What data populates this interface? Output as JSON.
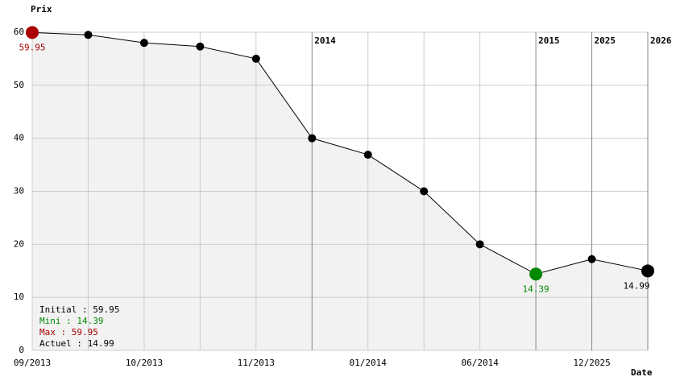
{
  "chart_data": {
    "type": "line",
    "y_label": "Prix",
    "x_label": "Date",
    "categories": [
      "09/2013",
      null,
      "10/2013",
      null,
      "11/2013",
      null,
      "01/2014",
      null,
      "06/2014",
      null,
      "12/2025",
      null
    ],
    "year_labels": [
      null,
      null,
      null,
      null,
      null,
      "2014",
      null,
      null,
      null,
      "2015",
      "2025",
      "2026"
    ],
    "series": [
      {
        "name": "Prix",
        "color": "#000000",
        "values": [
          59.95,
          59.5,
          58.0,
          57.3,
          55.0,
          40.0,
          36.9,
          30.0,
          20.0,
          14.39,
          17.2,
          14.99
        ],
        "value_labels": [
          "59.95",
          null,
          null,
          null,
          null,
          null,
          null,
          null,
          null,
          "14.39",
          null,
          "14.99"
        ],
        "point_colors": [
          "#aa0000",
          "#000000",
          "#000000",
          "#000000",
          "#000000",
          "#000000",
          "#000000",
          "#000000",
          "#000000",
          "#008800",
          "#000000",
          "#000000"
        ]
      }
    ],
    "ylim": [
      0,
      60
    ],
    "yticks": [
      0,
      10,
      20,
      30,
      40,
      50,
      60
    ],
    "grid": true,
    "stats": [
      {
        "text": "Initial : 59.95",
        "color": "#000000"
      },
      {
        "text": "Mini : 14.39",
        "color": "#008800"
      },
      {
        "text": "Max : 59.95",
        "color": "#aa0000"
      },
      {
        "text": "Actuel : 14.99",
        "color": "#000000"
      }
    ]
  }
}
